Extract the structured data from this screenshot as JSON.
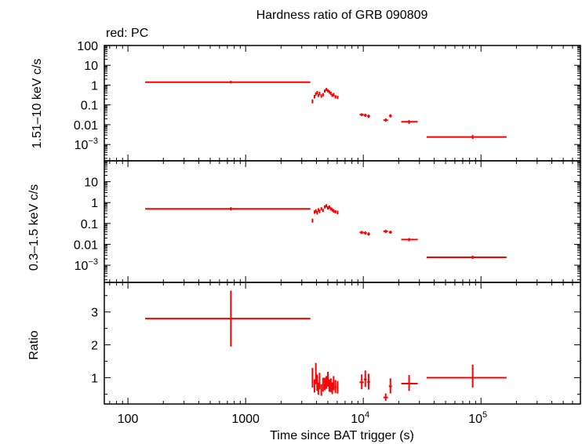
{
  "chart_data": {
    "type": "scatter",
    "title": "Hardness ratio of GRB 090809",
    "legend": "red: PC",
    "xlabel": "Time since BAT trigger (s)",
    "x_scale": "log",
    "xlim": [
      63,
      700000
    ],
    "x_ticks": [
      {
        "value": 100,
        "label": "100"
      },
      {
        "value": 1000,
        "label": "1000"
      },
      {
        "value": 10000,
        "base": "10",
        "exp": "4"
      },
      {
        "value": 100000,
        "base": "10",
        "exp": "5"
      }
    ],
    "color": "#ff0000",
    "panels": [
      {
        "id": "hard",
        "ylabel": "1.51–10 keV c/s",
        "y_scale": "log",
        "ylim": [
          0.00015,
          100
        ],
        "y_ticks": [
          {
            "value": 100,
            "label": "100"
          },
          {
            "value": 10,
            "label": "10"
          },
          {
            "value": 1,
            "label": "1"
          },
          {
            "value": 0.1,
            "label": "0.1"
          },
          {
            "value": 0.01,
            "label": "0.01"
          },
          {
            "value": 0.001,
            "base": "10",
            "exp": "−3"
          }
        ],
        "points": [
          {
            "x": 750,
            "xlo": 140,
            "xhi": 3550,
            "y": 1.4,
            "ylo": 1.2,
            "yhi": 1.65
          },
          {
            "x": 3700,
            "xlo": 3650,
            "xhi": 3750,
            "y": 0.15,
            "ylo": 0.12,
            "yhi": 0.19
          },
          {
            "x": 3850,
            "xlo": 3800,
            "xhi": 3900,
            "y": 0.26,
            "ylo": 0.21,
            "yhi": 0.32
          },
          {
            "x": 3950,
            "xlo": 3910,
            "xhi": 3990,
            "y": 0.35,
            "ylo": 0.29,
            "yhi": 0.42
          },
          {
            "x": 4050,
            "xlo": 4000,
            "xhi": 4100,
            "y": 0.42,
            "ylo": 0.35,
            "yhi": 0.5
          },
          {
            "x": 4150,
            "xlo": 4110,
            "xhi": 4190,
            "y": 0.3,
            "ylo": 0.25,
            "yhi": 0.36
          },
          {
            "x": 4250,
            "xlo": 4200,
            "xhi": 4300,
            "y": 0.38,
            "ylo": 0.31,
            "yhi": 0.46
          },
          {
            "x": 4400,
            "xlo": 4330,
            "xhi": 4470,
            "y": 0.28,
            "ylo": 0.23,
            "yhi": 0.34
          },
          {
            "x": 4550,
            "xlo": 4490,
            "xhi": 4610,
            "y": 0.33,
            "ylo": 0.27,
            "yhi": 0.4
          },
          {
            "x": 4700,
            "xlo": 4640,
            "xhi": 4760,
            "y": 0.5,
            "ylo": 0.42,
            "yhi": 0.6
          },
          {
            "x": 4850,
            "xlo": 4790,
            "xhi": 4910,
            "y": 0.6,
            "ylo": 0.5,
            "yhi": 0.72
          },
          {
            "x": 5000,
            "xlo": 4940,
            "xhi": 5060,
            "y": 0.52,
            "ylo": 0.43,
            "yhi": 0.62
          },
          {
            "x": 5150,
            "xlo": 5090,
            "xhi": 5210,
            "y": 0.45,
            "ylo": 0.37,
            "yhi": 0.54
          },
          {
            "x": 5300,
            "xlo": 5230,
            "xhi": 5370,
            "y": 0.38,
            "ylo": 0.31,
            "yhi": 0.46
          },
          {
            "x": 5450,
            "xlo": 5390,
            "xhi": 5510,
            "y": 0.3,
            "ylo": 0.25,
            "yhi": 0.36
          },
          {
            "x": 5600,
            "xlo": 5530,
            "xhi": 5670,
            "y": 0.33,
            "ylo": 0.27,
            "yhi": 0.4
          },
          {
            "x": 5800,
            "xlo": 5700,
            "xhi": 5900,
            "y": 0.26,
            "ylo": 0.21,
            "yhi": 0.31
          },
          {
            "x": 6050,
            "xlo": 5950,
            "xhi": 6150,
            "y": 0.24,
            "ylo": 0.2,
            "yhi": 0.29
          },
          {
            "x": 9700,
            "xlo": 9300,
            "xhi": 10100,
            "y": 0.032,
            "ylo": 0.027,
            "yhi": 0.038
          },
          {
            "x": 10400,
            "xlo": 10100,
            "xhi": 10700,
            "y": 0.03,
            "ylo": 0.025,
            "yhi": 0.036
          },
          {
            "x": 11100,
            "xlo": 10800,
            "xhi": 11400,
            "y": 0.027,
            "ylo": 0.022,
            "yhi": 0.032
          },
          {
            "x": 15500,
            "xlo": 14800,
            "xhi": 16200,
            "y": 0.017,
            "ylo": 0.014,
            "yhi": 0.021
          },
          {
            "x": 17000,
            "xlo": 16500,
            "xhi": 17500,
            "y": 0.028,
            "ylo": 0.023,
            "yhi": 0.034
          },
          {
            "x": 24500,
            "xlo": 21000,
            "xhi": 29000,
            "y": 0.014,
            "ylo": 0.011,
            "yhi": 0.017
          },
          {
            "x": 85000,
            "xlo": 34500,
            "xhi": 165000,
            "y": 0.0024,
            "ylo": 0.0019,
            "yhi": 0.003
          }
        ]
      },
      {
        "id": "soft",
        "ylabel": "0.3–1.5 keV c/s",
        "y_scale": "log",
        "ylim": [
          0.00015,
          100
        ],
        "y_ticks": [
          {
            "value": 10,
            "label": "10"
          },
          {
            "value": 1,
            "label": "1"
          },
          {
            "value": 0.1,
            "label": "0.1"
          },
          {
            "value": 0.01,
            "label": "0.01"
          },
          {
            "value": 0.001,
            "base": "10",
            "exp": "−3"
          }
        ],
        "points": [
          {
            "x": 750,
            "xlo": 140,
            "xhi": 3550,
            "y": 0.5,
            "ylo": 0.42,
            "yhi": 0.6
          },
          {
            "x": 3700,
            "xlo": 3650,
            "xhi": 3750,
            "y": 0.14,
            "ylo": 0.11,
            "yhi": 0.17
          },
          {
            "x": 3850,
            "xlo": 3800,
            "xhi": 3900,
            "y": 0.35,
            "ylo": 0.29,
            "yhi": 0.42
          },
          {
            "x": 3950,
            "xlo": 3910,
            "xhi": 3990,
            "y": 0.4,
            "ylo": 0.33,
            "yhi": 0.48
          },
          {
            "x": 4050,
            "xlo": 4000,
            "xhi": 4100,
            "y": 0.33,
            "ylo": 0.27,
            "yhi": 0.4
          },
          {
            "x": 4150,
            "xlo": 4110,
            "xhi": 4190,
            "y": 0.45,
            "ylo": 0.37,
            "yhi": 0.54
          },
          {
            "x": 4250,
            "xlo": 4200,
            "xhi": 4300,
            "y": 0.38,
            "ylo": 0.31,
            "yhi": 0.46
          },
          {
            "x": 4400,
            "xlo": 4330,
            "xhi": 4470,
            "y": 0.5,
            "ylo": 0.42,
            "yhi": 0.6
          },
          {
            "x": 4550,
            "xlo": 4490,
            "xhi": 4610,
            "y": 0.42,
            "ylo": 0.35,
            "yhi": 0.5
          },
          {
            "x": 4700,
            "xlo": 4640,
            "xhi": 4760,
            "y": 0.62,
            "ylo": 0.52,
            "yhi": 0.74
          },
          {
            "x": 4850,
            "xlo": 4790,
            "xhi": 4910,
            "y": 0.7,
            "ylo": 0.58,
            "yhi": 0.84
          },
          {
            "x": 5000,
            "xlo": 4940,
            "xhi": 5060,
            "y": 0.55,
            "ylo": 0.46,
            "yhi": 0.66
          },
          {
            "x": 5150,
            "xlo": 5090,
            "xhi": 5210,
            "y": 0.6,
            "ylo": 0.5,
            "yhi": 0.72
          },
          {
            "x": 5300,
            "xlo": 5230,
            "xhi": 5370,
            "y": 0.5,
            "ylo": 0.42,
            "yhi": 0.6
          },
          {
            "x": 5450,
            "xlo": 5390,
            "xhi": 5510,
            "y": 0.45,
            "ylo": 0.37,
            "yhi": 0.54
          },
          {
            "x": 5600,
            "xlo": 5530,
            "xhi": 5670,
            "y": 0.4,
            "ylo": 0.33,
            "yhi": 0.48
          },
          {
            "x": 5800,
            "xlo": 5700,
            "xhi": 5900,
            "y": 0.36,
            "ylo": 0.3,
            "yhi": 0.43
          },
          {
            "x": 6050,
            "xlo": 5950,
            "xhi": 6150,
            "y": 0.34,
            "ylo": 0.28,
            "yhi": 0.41
          },
          {
            "x": 9700,
            "xlo": 9300,
            "xhi": 10100,
            "y": 0.037,
            "ylo": 0.031,
            "yhi": 0.044
          },
          {
            "x": 10400,
            "xlo": 10100,
            "xhi": 10700,
            "y": 0.035,
            "ylo": 0.029,
            "yhi": 0.042
          },
          {
            "x": 11100,
            "xlo": 10800,
            "xhi": 11400,
            "y": 0.031,
            "ylo": 0.026,
            "yhi": 0.037
          },
          {
            "x": 15500,
            "xlo": 14800,
            "xhi": 16200,
            "y": 0.042,
            "ylo": 0.035,
            "yhi": 0.05
          },
          {
            "x": 17000,
            "xlo": 16500,
            "xhi": 17500,
            "y": 0.038,
            "ylo": 0.032,
            "yhi": 0.045
          },
          {
            "x": 24500,
            "xlo": 21000,
            "xhi": 29000,
            "y": 0.017,
            "ylo": 0.014,
            "yhi": 0.02
          },
          {
            "x": 85000,
            "xlo": 34500,
            "xhi": 165000,
            "y": 0.0024,
            "ylo": 0.002,
            "yhi": 0.0029
          }
        ]
      },
      {
        "id": "ratio",
        "ylabel": "Ratio",
        "y_scale": "linear",
        "ylim": [
          0.2,
          3.9
        ],
        "y_ticks": [
          {
            "value": 1,
            "label": "1"
          },
          {
            "value": 2,
            "label": "2"
          },
          {
            "value": 3,
            "label": "3"
          }
        ],
        "points": [
          {
            "x": 750,
            "xlo": 140,
            "xhi": 3550,
            "y": 2.8,
            "ylo": 1.95,
            "yhi": 3.65
          },
          {
            "x": 3700,
            "xlo": 3650,
            "xhi": 3750,
            "y": 1.0,
            "ylo": 0.7,
            "yhi": 1.3
          },
          {
            "x": 3850,
            "xlo": 3800,
            "xhi": 3900,
            "y": 0.75,
            "ylo": 0.55,
            "yhi": 0.95
          },
          {
            "x": 3950,
            "xlo": 3910,
            "xhi": 3990,
            "y": 1.1,
            "ylo": 0.8,
            "yhi": 1.45
          },
          {
            "x": 4050,
            "xlo": 4000,
            "xhi": 4100,
            "y": 0.85,
            "ylo": 0.6,
            "yhi": 1.1
          },
          {
            "x": 4150,
            "xlo": 4110,
            "xhi": 4190,
            "y": 0.65,
            "ylo": 0.48,
            "yhi": 0.85
          },
          {
            "x": 4250,
            "xlo": 4200,
            "xhi": 4300,
            "y": 0.9,
            "ylo": 0.65,
            "yhi": 1.15
          },
          {
            "x": 4400,
            "xlo": 4330,
            "xhi": 4470,
            "y": 0.6,
            "ylo": 0.45,
            "yhi": 0.8
          },
          {
            "x": 4550,
            "xlo": 4490,
            "xhi": 4610,
            "y": 0.78,
            "ylo": 0.58,
            "yhi": 1.0
          },
          {
            "x": 4700,
            "xlo": 4640,
            "xhi": 4760,
            "y": 0.8,
            "ylo": 0.62,
            "yhi": 1.0
          },
          {
            "x": 4850,
            "xlo": 4790,
            "xhi": 4910,
            "y": 0.85,
            "ylo": 0.66,
            "yhi": 1.05
          },
          {
            "x": 5000,
            "xlo": 4940,
            "xhi": 5060,
            "y": 0.95,
            "ylo": 0.73,
            "yhi": 1.18
          },
          {
            "x": 5150,
            "xlo": 5090,
            "xhi": 5210,
            "y": 0.75,
            "ylo": 0.57,
            "yhi": 0.95
          },
          {
            "x": 5300,
            "xlo": 5230,
            "xhi": 5370,
            "y": 0.76,
            "ylo": 0.56,
            "yhi": 0.98
          },
          {
            "x": 5450,
            "xlo": 5390,
            "xhi": 5510,
            "y": 0.67,
            "ylo": 0.5,
            "yhi": 0.86
          },
          {
            "x": 5600,
            "xlo": 5530,
            "xhi": 5670,
            "y": 0.83,
            "ylo": 0.62,
            "yhi": 1.05
          },
          {
            "x": 5800,
            "xlo": 5700,
            "xhi": 5900,
            "y": 0.72,
            "ylo": 0.53,
            "yhi": 0.93
          },
          {
            "x": 6050,
            "xlo": 5950,
            "xhi": 6150,
            "y": 0.7,
            "ylo": 0.52,
            "yhi": 0.9
          },
          {
            "x": 9700,
            "xlo": 9300,
            "xhi": 10100,
            "y": 0.86,
            "ylo": 0.65,
            "yhi": 1.1
          },
          {
            "x": 10400,
            "xlo": 10100,
            "xhi": 10700,
            "y": 0.95,
            "ylo": 0.72,
            "yhi": 1.22
          },
          {
            "x": 11100,
            "xlo": 10800,
            "xhi": 11400,
            "y": 0.87,
            "ylo": 0.64,
            "yhi": 1.12
          },
          {
            "x": 15500,
            "xlo": 14800,
            "xhi": 16200,
            "y": 0.4,
            "ylo": 0.3,
            "yhi": 0.52
          },
          {
            "x": 17000,
            "xlo": 16500,
            "xhi": 17500,
            "y": 0.74,
            "ylo": 0.52,
            "yhi": 0.98
          },
          {
            "x": 24500,
            "xlo": 21000,
            "xhi": 29000,
            "y": 0.82,
            "ylo": 0.6,
            "yhi": 1.08
          },
          {
            "x": 85000,
            "xlo": 34500,
            "xhi": 165000,
            "y": 1.0,
            "ylo": 0.7,
            "yhi": 1.4
          }
        ]
      }
    ]
  }
}
